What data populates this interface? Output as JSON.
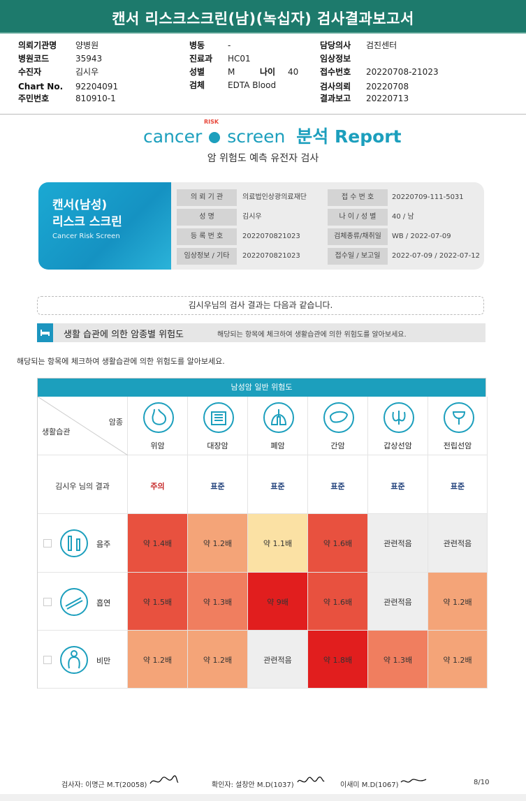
{
  "report_title": "캔서 리스크스크린(남)(녹십자) 검사결과보고서",
  "header": {
    "col1": [
      {
        "label": "의뢰기관명",
        "value": "양병원"
      },
      {
        "label": "병원코드",
        "value": "35943"
      },
      {
        "label": "수진자",
        "value": "김시우"
      },
      {
        "label": "Chart No.",
        "value": "92204091"
      },
      {
        "label": "주민번호",
        "value": "810910-1"
      }
    ],
    "col2": [
      {
        "label": "병동",
        "value": "-"
      },
      {
        "label": "진료과",
        "value": "HC01"
      },
      {
        "label": "성별",
        "value": "M"
      },
      {
        "label": "검체",
        "value": "EDTA Blood"
      }
    ],
    "age": {
      "label": "나이",
      "value": "40"
    },
    "col3": [
      {
        "label": "담당의사",
        "value": "검진센터"
      },
      {
        "label": "임상정보",
        "value": ""
      },
      {
        "label": "접수번호",
        "value": "20220708-21023"
      },
      {
        "label": "검사의뢰",
        "value": "20220708"
      },
      {
        "label": "결과보고",
        "value": "20220713"
      }
    ]
  },
  "brand": {
    "cancer": "cancer",
    "risk": "RISK",
    "screen": "screen",
    "report": "분석 Report"
  },
  "subtitle": "암 위험도 예측 유전자 검사",
  "card": {
    "title1": "캔서(남성)",
    "title2": "리스크 스크린",
    "title3": "Cancer Risk Screen",
    "rows": [
      {
        "l1": "의 뢰 기 관",
        "v1": "의료법인상광의료재단",
        "l2": "접 수 번 호",
        "v2": "20220709-111-5031"
      },
      {
        "l1": "성 명",
        "v1": "김시우",
        "l2": "나 이 / 성 별",
        "v2": "40 / 남"
      },
      {
        "l1": "등 록 번 호",
        "v1": "2022070821023",
        "l2": "검체종류/채취일",
        "v2": "WB / 2022-07-09"
      },
      {
        "l1": "임상정보 / 기타",
        "v1": "2022070821023",
        "l2": "접수일 / 보고일",
        "v2": "2022-07-09 / 2022-07-12"
      }
    ]
  },
  "notice": "김시우님의 검사 결과는 다음과 같습니다.",
  "section": {
    "title": "생활 습관에 의한 암종별 위험도",
    "note": "해당되는 항목에 체크하여 생활습관에 의한 위험도를 알아보세요."
  },
  "guide": "해당되는 항목에 체크하여 생활습관에 의한 위험도를 알아보세요.",
  "table": {
    "heading": "남성암 일반 위험도",
    "corner_top": "암종",
    "corner_bottom": "생활습관",
    "result_label": "김시우 님의 결과",
    "cancers": [
      {
        "name": "위암",
        "icon": "stomach-icon",
        "result": "주의",
        "result_color": "#c62828"
      },
      {
        "name": "대장암",
        "icon": "colon-icon",
        "result": "표준",
        "result_color": "#1f3f7a"
      },
      {
        "name": "폐암",
        "icon": "lung-icon",
        "result": "표준",
        "result_color": "#1f3f7a"
      },
      {
        "name": "간암",
        "icon": "liver-icon",
        "result": "표준",
        "result_color": "#1f3f7a"
      },
      {
        "name": "갑상선암",
        "icon": "thyroid-icon",
        "result": "표준",
        "result_color": "#1f3f7a"
      },
      {
        "name": "전립선암",
        "icon": "prostate-icon",
        "result": "표준",
        "result_color": "#1f3f7a"
      }
    ],
    "habits": [
      {
        "name": "음주",
        "icon": "drinking-icon",
        "values": [
          "약 1.4배",
          "약 1.2배",
          "약 1.1배",
          "약 1.6배",
          "관련적음",
          "관련적음"
        ],
        "colors": [
          "#e8513f",
          "#f4a478",
          "#fbe1a4",
          "#e8513f",
          "#eeeeee",
          "#eeeeee"
        ]
      },
      {
        "name": "흡연",
        "icon": "smoking-icon",
        "values": [
          "약 1.5배",
          "약 1.3배",
          "약 9배",
          "약 1.6배",
          "관련적음",
          "약 1.2배"
        ],
        "colors": [
          "#e8513f",
          "#f07e5f",
          "#e11e1e",
          "#e8513f",
          "#eeeeee",
          "#f4a478"
        ]
      },
      {
        "name": "비만",
        "icon": "obesity-icon",
        "values": [
          "약 1.2배",
          "약 1.2배",
          "관련적음",
          "약 1.8배",
          "약 1.3배",
          "약 1.2배"
        ],
        "colors": [
          "#f4a478",
          "#f4a478",
          "#eeeeee",
          "#e11e1e",
          "#f07e5f",
          "#f4a478"
        ]
      }
    ]
  },
  "footer": {
    "tester": "검사자: 이명근 M.T(20058)",
    "confirmer": "확인자: 설창안 M.D(1037)",
    "doctor": "이새미 M.D(1067)",
    "page": "8/10"
  }
}
